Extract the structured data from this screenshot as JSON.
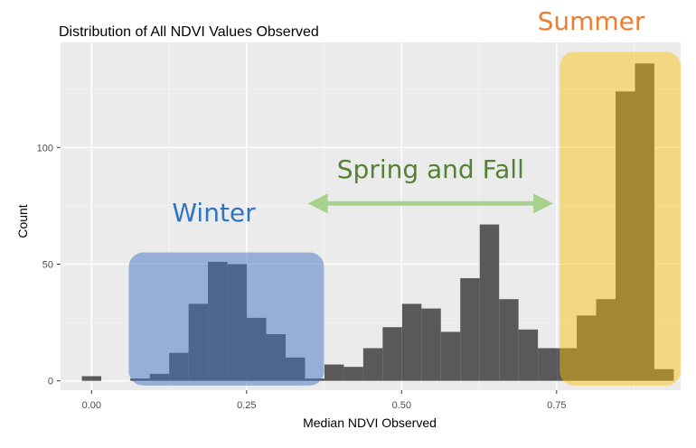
{
  "chart_data": {
    "type": "bar",
    "title": "Distribution of All NDVI Values Observed",
    "xlabel": "Median NDVI Observed",
    "ylabel": "Count",
    "xlim": [
      -0.05,
      0.95
    ],
    "ylim": [
      -4,
      145
    ],
    "bin_width": 0.0313,
    "x_ticks": [
      0.0,
      0.25,
      0.5,
      0.75
    ],
    "x_tick_labels": [
      "0.00",
      "0.25",
      "0.50",
      "0.75"
    ],
    "y_ticks": [
      0,
      50,
      100
    ],
    "y_tick_labels": [
      "0",
      "50",
      "100"
    ],
    "grid": true,
    "bins": [
      {
        "x": 0.0,
        "count": 2
      },
      {
        "x": 0.0782,
        "count": 1
      },
      {
        "x": 0.1095,
        "count": 3
      },
      {
        "x": 0.1408,
        "count": 12
      },
      {
        "x": 0.1721,
        "count": 33
      },
      {
        "x": 0.2034,
        "count": 51
      },
      {
        "x": 0.2347,
        "count": 50
      },
      {
        "x": 0.266,
        "count": 27
      },
      {
        "x": 0.2973,
        "count": 20
      },
      {
        "x": 0.3286,
        "count": 10
      },
      {
        "x": 0.3599,
        "count": 1
      },
      {
        "x": 0.3912,
        "count": 7
      },
      {
        "x": 0.4225,
        "count": 6
      },
      {
        "x": 0.4538,
        "count": 14
      },
      {
        "x": 0.4851,
        "count": 23
      },
      {
        "x": 0.5164,
        "count": 33
      },
      {
        "x": 0.5477,
        "count": 31
      },
      {
        "x": 0.579,
        "count": 21
      },
      {
        "x": 0.6103,
        "count": 44
      },
      {
        "x": 0.6416,
        "count": 67
      },
      {
        "x": 0.6729,
        "count": 35
      },
      {
        "x": 0.7042,
        "count": 22
      },
      {
        "x": 0.7355,
        "count": 14
      },
      {
        "x": 0.7668,
        "count": 14
      },
      {
        "x": 0.7981,
        "count": 28
      },
      {
        "x": 0.8294,
        "count": 35
      },
      {
        "x": 0.8607,
        "count": 124
      },
      {
        "x": 0.892,
        "count": 136
      },
      {
        "x": 0.9233,
        "count": 5
      }
    ],
    "bar_color": "#595959",
    "panel_color": "#ebebeb",
    "annotations": {
      "winter": {
        "label": "Winter",
        "text_color": "#2e74c0",
        "fill_color": "#4472c4",
        "x_range": [
          0.06,
          0.375
        ],
        "y_range": [
          -2,
          55
        ]
      },
      "spring_fall": {
        "label": "Spring and Fall",
        "text_color": "#548235",
        "arrow_color": "#a9d18e",
        "x_range": [
          0.375,
          0.73
        ],
        "y": 76
      },
      "summer": {
        "label": "Summer",
        "text_color": "#ed7d31",
        "fill_color": "#ffc000",
        "x_range": [
          0.755,
          0.95
        ],
        "y_range": [
          -2,
          141
        ]
      }
    }
  }
}
